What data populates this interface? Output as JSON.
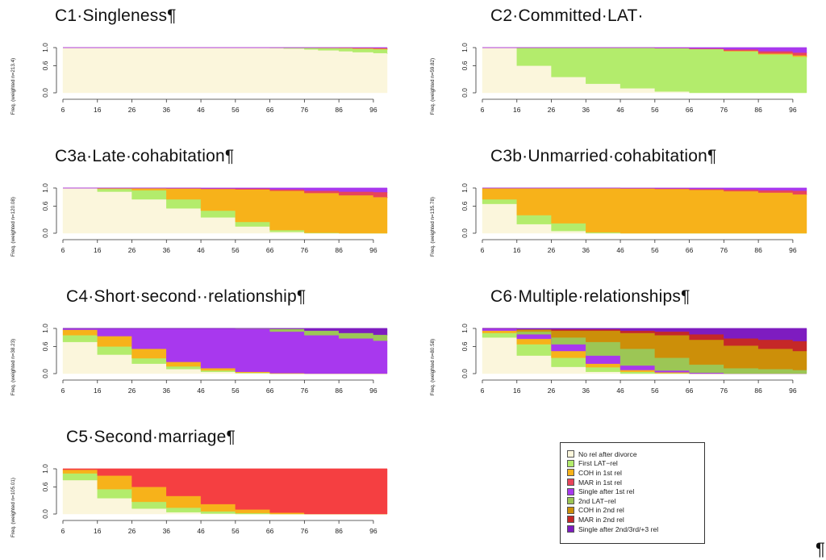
{
  "colors": {
    "No rel after divorce": "#fbf6dc",
    "First LAT-rel": "#b3ec6c",
    "COH in 1st rel": "#f7b21a",
    "MAR in 1st rel": "#e8445a",
    "Single after 1st rel": "#a838ee",
    "2nd LAT-rel": "#9cc655",
    "COH in 2nd rel": "#cc8f09",
    "MAR in 2nd rel": "#c52828",
    "Single after 2nd/3rd/+3 rel": "#7e1cc0",
    "c5_MAR": "#f53f41"
  },
  "legend": {
    "items": [
      {
        "label": "No rel after divorce",
        "color": "#fbf6dc"
      },
      {
        "label": "First LAT−rel",
        "color": "#b3ec6c"
      },
      {
        "label": "COH in 1st rel",
        "color": "#f7b21a"
      },
      {
        "label": "MAR in 1st rel",
        "color": "#e8445a"
      },
      {
        "label": "Single after 1st rel",
        "color": "#a838ee"
      },
      {
        "label": "2nd LAT−rel",
        "color": "#9cc655"
      },
      {
        "label": "COH in 2nd rel",
        "color": "#cc8f09"
      },
      {
        "label": "MAR in 2nd rel",
        "color": "#c52828"
      },
      {
        "label": "Single after 2nd/3rd/+3 rel",
        "color": "#7e1cc0"
      }
    ]
  },
  "pilcrow": "¶",
  "chart_data": [
    {
      "type": "area",
      "title": "C1·Singleness¶",
      "ylabel": "Freq. (weighted n=213.4)",
      "x_ticks": [
        "6",
        "16",
        "26",
        "36",
        "46",
        "56",
        "66",
        "76",
        "86",
        "96"
      ],
      "y_ticks": [
        "0.0",
        "0.6",
        "1.0"
      ],
      "ylim": [
        0,
        1
      ],
      "xlim": [
        6,
        100
      ],
      "x": [
        6,
        60,
        66,
        70,
        76,
        80,
        86,
        90,
        96,
        100
      ],
      "series": [
        {
          "name": "No rel after divorce",
          "color": "#fbf6dc",
          "values": [
            1,
            1,
            0.99,
            0.98,
            0.96,
            0.94,
            0.92,
            0.9,
            0.88,
            0.86
          ]
        },
        {
          "name": "First LAT-rel",
          "color": "#b3ec6c",
          "values": [
            0,
            0,
            0.01,
            0.02,
            0.035,
            0.05,
            0.065,
            0.075,
            0.085,
            0.09
          ]
        },
        {
          "name": "COH in 1st rel",
          "color": "#f7b21a",
          "values": [
            0,
            0,
            0,
            0,
            0.005,
            0.005,
            0.01,
            0.01,
            0.015,
            0.02
          ]
        },
        {
          "name": "MAR in 1st rel",
          "color": "#e8445a",
          "values": [
            0,
            0,
            0,
            0,
            0,
            0.005,
            0.005,
            0.01,
            0.01,
            0.015
          ]
        },
        {
          "name": "Single after 1st rel",
          "color": "#a838ee",
          "values": [
            0,
            0,
            0,
            0,
            0,
            0,
            0.005,
            0.005,
            0.01,
            0.015
          ]
        }
      ]
    },
    {
      "type": "area",
      "title": "C2·Committed·LAT·",
      "ylabel": "Freq. (weighted n=59.82)",
      "x_ticks": [
        "6",
        "16",
        "26",
        "36",
        "46",
        "56",
        "66",
        "76",
        "86",
        "96"
      ],
      "y_ticks": [
        "0.0",
        "0.6",
        "1.0"
      ],
      "ylim": [
        0,
        1
      ],
      "xlim": [
        6,
        100
      ],
      "x": [
        6,
        16,
        26,
        36,
        46,
        56,
        66,
        76,
        86,
        96,
        100
      ],
      "series": [
        {
          "name": "No rel after divorce",
          "color": "#fbf6dc",
          "values": [
            1,
            0.6,
            0.35,
            0.2,
            0.1,
            0.03,
            0,
            0,
            0,
            0,
            0
          ]
        },
        {
          "name": "First LAT-rel",
          "color": "#b3ec6c",
          "values": [
            0,
            0.4,
            0.65,
            0.8,
            0.9,
            0.96,
            0.97,
            0.92,
            0.85,
            0.8,
            0.78
          ]
        },
        {
          "name": "COH in 1st rel",
          "color": "#f7b21a",
          "values": [
            0,
            0,
            0,
            0,
            0,
            0,
            0,
            0.01,
            0.02,
            0.03,
            0.03
          ]
        },
        {
          "name": "MAR in 1st rel",
          "color": "#e8445a",
          "values": [
            0,
            0,
            0,
            0,
            0,
            0,
            0.01,
            0.03,
            0.05,
            0.06,
            0.07
          ]
        },
        {
          "name": "Single after 1st rel",
          "color": "#a838ee",
          "values": [
            0,
            0,
            0,
            0,
            0,
            0.01,
            0.02,
            0.04,
            0.08,
            0.11,
            0.12
          ]
        }
      ]
    },
    {
      "type": "area",
      "title": "C3a·Late·cohabitation¶",
      "ylabel": "Freq. (weighted n=120.08)",
      "x_ticks": [
        "6",
        "16",
        "26",
        "36",
        "46",
        "56",
        "66",
        "76",
        "86",
        "96"
      ],
      "y_ticks": [
        "0.0",
        "0.6",
        "1.0"
      ],
      "ylim": [
        0,
        1
      ],
      "xlim": [
        6,
        100
      ],
      "x": [
        6,
        16,
        26,
        36,
        46,
        56,
        66,
        76,
        86,
        96,
        100
      ],
      "series": [
        {
          "name": "No rel after divorce",
          "color": "#fbf6dc",
          "values": [
            1,
            0.92,
            0.75,
            0.55,
            0.35,
            0.15,
            0.03,
            0,
            0,
            0,
            0
          ]
        },
        {
          "name": "First LAT-rel",
          "color": "#b3ec6c",
          "values": [
            0,
            0.06,
            0.2,
            0.2,
            0.15,
            0.1,
            0.04,
            0.01,
            0,
            0,
            0
          ]
        },
        {
          "name": "COH in 1st rel",
          "color": "#f7b21a",
          "values": [
            0,
            0.02,
            0.05,
            0.24,
            0.48,
            0.72,
            0.87,
            0.88,
            0.84,
            0.8,
            0.78
          ]
        },
        {
          "name": "MAR in 1st rel",
          "color": "#e8445a",
          "values": [
            0,
            0,
            0,
            0.01,
            0.01,
            0.02,
            0.03,
            0.05,
            0.08,
            0.11,
            0.12
          ]
        },
        {
          "name": "Single after 1st rel",
          "color": "#a838ee",
          "values": [
            0,
            0,
            0,
            0,
            0.01,
            0.01,
            0.03,
            0.06,
            0.08,
            0.09,
            0.1
          ]
        }
      ]
    },
    {
      "type": "area",
      "title": "C3b·Unmarried·cohabitation¶",
      "ylabel": "Freq. (weighted n=135.78)",
      "x_ticks": [
        "6",
        "16",
        "26",
        "36",
        "46",
        "56",
        "66",
        "76",
        "86",
        "96"
      ],
      "y_ticks": [
        "0.0",
        "0.6",
        "1.0"
      ],
      "ylim": [
        0,
        1
      ],
      "xlim": [
        6,
        100
      ],
      "x": [
        6,
        16,
        26,
        36,
        46,
        56,
        66,
        76,
        86,
        96,
        100
      ],
      "series": [
        {
          "name": "No rel after divorce",
          "color": "#fbf6dc",
          "values": [
            0.65,
            0.2,
            0.05,
            0,
            0,
            0,
            0,
            0,
            0,
            0,
            0
          ]
        },
        {
          "name": "First LAT-rel",
          "color": "#b3ec6c",
          "values": [
            0.1,
            0.2,
            0.17,
            0.02,
            0,
            0,
            0,
            0,
            0,
            0,
            0
          ]
        },
        {
          "name": "COH in 1st rel",
          "color": "#f7b21a",
          "values": [
            0.25,
            0.6,
            0.78,
            0.98,
            0.99,
            0.98,
            0.96,
            0.93,
            0.9,
            0.86,
            0.85
          ]
        },
        {
          "name": "MAR in 1st rel",
          "color": "#e8445a",
          "values": [
            0,
            0,
            0,
            0,
            0.005,
            0.01,
            0.02,
            0.035,
            0.05,
            0.08,
            0.09
          ]
        },
        {
          "name": "Single after 1st rel",
          "color": "#a838ee",
          "values": [
            0,
            0,
            0,
            0,
            0.005,
            0.01,
            0.02,
            0.035,
            0.05,
            0.06,
            0.06
          ]
        }
      ]
    },
    {
      "type": "area",
      "title": "C4·Short·second··relationship¶",
      "ylabel": "Freq. (weighted n=38.23)",
      "x_ticks": [
        "6",
        "16",
        "26",
        "36",
        "46",
        "56",
        "66",
        "76",
        "86",
        "96"
      ],
      "y_ticks": [
        "0.0",
        "0.6",
        "1.0"
      ],
      "ylim": [
        0,
        1
      ],
      "xlim": [
        6,
        100
      ],
      "x": [
        6,
        16,
        26,
        36,
        46,
        56,
        66,
        76,
        86,
        96,
        100
      ],
      "series": [
        {
          "name": "No rel after divorce",
          "color": "#fbf6dc",
          "values": [
            0.7,
            0.42,
            0.22,
            0.1,
            0.04,
            0.01,
            0,
            0,
            0,
            0,
            0
          ]
        },
        {
          "name": "First LAT-rel",
          "color": "#b3ec6c",
          "values": [
            0.15,
            0.18,
            0.12,
            0.06,
            0.03,
            0.01,
            0,
            0,
            0,
            0,
            0
          ]
        },
        {
          "name": "COH in 1st rel",
          "color": "#f7b21a",
          "values": [
            0.12,
            0.23,
            0.21,
            0.1,
            0.05,
            0.02,
            0.01,
            0,
            0,
            0,
            0
          ]
        },
        {
          "name": "Single after 1st rel",
          "color": "#a838ee",
          "values": [
            0.03,
            0.17,
            0.45,
            0.74,
            0.88,
            0.95,
            0.92,
            0.85,
            0.78,
            0.73,
            0.72
          ]
        },
        {
          "name": "2nd LAT-rel",
          "color": "#9cc655",
          "values": [
            0,
            0,
            0,
            0,
            0,
            0.01,
            0.06,
            0.1,
            0.12,
            0.13,
            0.13
          ]
        },
        {
          "name": "Single after 2nd/3rd/+3 rel",
          "color": "#7e1cc0",
          "values": [
            0,
            0,
            0,
            0,
            0,
            0,
            0.01,
            0.05,
            0.1,
            0.14,
            0.15
          ]
        }
      ]
    },
    {
      "type": "area",
      "title": "C6·Multiple·relationships¶",
      "ylabel": "Freq. (weighted n=80.58)",
      "x_ticks": [
        "6",
        "16",
        "26",
        "36",
        "46",
        "56",
        "66",
        "76",
        "86",
        "96"
      ],
      "y_ticks": [
        "0.0",
        "0.6",
        "1.0"
      ],
      "ylim": [
        0,
        1
      ],
      "xlim": [
        6,
        100
      ],
      "x": [
        6,
        16,
        26,
        36,
        46,
        56,
        66,
        76,
        86,
        96,
        100
      ],
      "series": [
        {
          "name": "No rel after divorce",
          "color": "#fbf6dc",
          "values": [
            0.8,
            0.4,
            0.15,
            0.04,
            0,
            0,
            0,
            0,
            0,
            0,
            0
          ]
        },
        {
          "name": "First LAT-rel",
          "color": "#b3ec6c",
          "values": [
            0.1,
            0.25,
            0.2,
            0.1,
            0.04,
            0.01,
            0,
            0,
            0,
            0,
            0
          ]
        },
        {
          "name": "COH in 1st rel",
          "color": "#f7b21a",
          "values": [
            0.05,
            0.12,
            0.15,
            0.08,
            0.04,
            0.02,
            0,
            0,
            0,
            0,
            0
          ]
        },
        {
          "name": "Single after 1st rel",
          "color": "#a838ee",
          "values": [
            0.05,
            0.1,
            0.15,
            0.18,
            0.1,
            0.04,
            0.02,
            0,
            0,
            0,
            0
          ]
        },
        {
          "name": "2nd LAT-rel",
          "color": "#9cc655",
          "values": [
            0,
            0.06,
            0.15,
            0.3,
            0.37,
            0.28,
            0.18,
            0.12,
            0.1,
            0.08,
            0.08
          ]
        },
        {
          "name": "COH in 2nd rel",
          "color": "#cc8f09",
          "values": [
            0,
            0.05,
            0.15,
            0.25,
            0.35,
            0.5,
            0.55,
            0.5,
            0.45,
            0.42,
            0.42
          ]
        },
        {
          "name": "MAR in 2nd rel",
          "color": "#c52828",
          "values": [
            0,
            0,
            0.03,
            0.03,
            0.05,
            0.08,
            0.12,
            0.16,
            0.2,
            0.22,
            0.22
          ]
        },
        {
          "name": "Single after 2nd/3rd/+3 rel",
          "color": "#7e1cc0",
          "values": [
            0,
            0.02,
            0.02,
            0.02,
            0.05,
            0.07,
            0.13,
            0.22,
            0.25,
            0.28,
            0.28
          ]
        }
      ]
    },
    {
      "type": "area",
      "title": "C5·Second·marriage¶",
      "ylabel": "Freq. (weighted n=105.01)",
      "x_ticks": [
        "6",
        "16",
        "26",
        "36",
        "46",
        "56",
        "66",
        "76",
        "86",
        "96"
      ],
      "y_ticks": [
        "0.0",
        "0.6",
        "1.0"
      ],
      "ylim": [
        0,
        1
      ],
      "xlim": [
        6,
        100
      ],
      "x": [
        6,
        16,
        26,
        36,
        46,
        56,
        66,
        76,
        86,
        96,
        100
      ],
      "series": [
        {
          "name": "No rel after divorce",
          "color": "#fbf6dc",
          "values": [
            0.75,
            0.35,
            0.12,
            0.04,
            0.01,
            0,
            0,
            0,
            0,
            0,
            0
          ]
        },
        {
          "name": "First LAT-rel",
          "color": "#b3ec6c",
          "values": [
            0.15,
            0.2,
            0.15,
            0.1,
            0.05,
            0.02,
            0,
            0,
            0,
            0,
            0
          ]
        },
        {
          "name": "COH in 1st rel",
          "color": "#f7b21a",
          "values": [
            0.08,
            0.3,
            0.33,
            0.26,
            0.16,
            0.08,
            0.03,
            0,
            0,
            0,
            0
          ]
        },
        {
          "name": "MAR in 2nd rel",
          "color": "#f53f41",
          "values": [
            0.02,
            0.15,
            0.4,
            0.6,
            0.78,
            0.9,
            0.97,
            1,
            1,
            1,
            1
          ]
        }
      ]
    }
  ]
}
